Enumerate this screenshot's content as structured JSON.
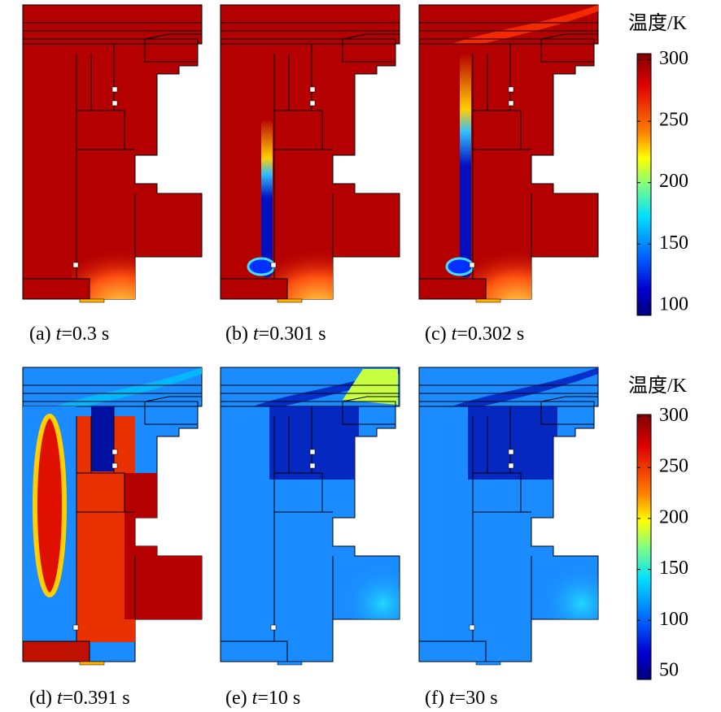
{
  "panels": [
    {
      "label": "(a)",
      "variable": "t",
      "value": "=0.3 s"
    },
    {
      "label": "(b)",
      "variable": "t",
      "value": "=0.301 s"
    },
    {
      "label": "(c)",
      "variable": "t",
      "value": "=0.302 s"
    },
    {
      "label": "(d)",
      "variable": "t",
      "value": "=0.391 s"
    },
    {
      "label": "(e)",
      "variable": "t",
      "value": "=10 s"
    },
    {
      "label": "(f)",
      "variable": "t",
      "value": "=30 s"
    }
  ],
  "colorbars": [
    {
      "label": "温度/K",
      "range": [
        92,
        305
      ],
      "ticks": [
        100,
        150,
        200,
        250,
        300
      ]
    },
    {
      "label": "温度/K",
      "range": [
        42,
        302
      ],
      "ticks": [
        50,
        100,
        150,
        200,
        250,
        300
      ]
    }
  ]
}
